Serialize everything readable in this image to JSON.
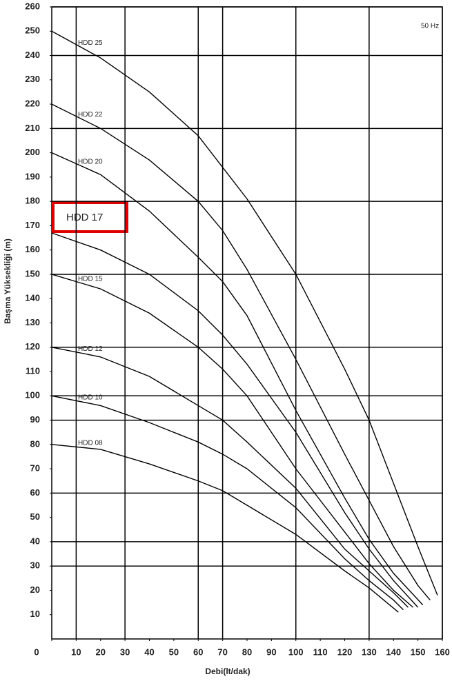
{
  "chart_data": {
    "type": "line",
    "x_label": "Debi(lt/dak)",
    "y_label": "Başma Yüksekliği (m)",
    "annotation": "50 Hz",
    "xlim": [
      0,
      160
    ],
    "ylim": [
      0,
      260
    ],
    "xticks": [
      0,
      10,
      20,
      30,
      40,
      50,
      60,
      70,
      80,
      90,
      100,
      110,
      120,
      130,
      140,
      150,
      160
    ],
    "yticks": [
      10,
      20,
      30,
      40,
      50,
      60,
      70,
      80,
      90,
      100,
      110,
      120,
      130,
      140,
      150,
      160,
      170,
      180,
      190,
      200,
      210,
      220,
      230,
      240,
      250,
      260
    ],
    "x_grid": [
      10,
      30,
      60,
      70,
      100,
      130,
      160
    ],
    "y_grid": [
      30,
      40,
      60,
      90,
      100,
      120,
      150,
      180,
      210,
      240,
      260
    ],
    "series": [
      {
        "name": "HDD 25",
        "color": "#000000",
        "x": [
          0,
          20,
          40,
          60,
          80,
          100,
          120,
          130,
          140,
          150,
          158
        ],
        "values": [
          250,
          239,
          225,
          207,
          181,
          150,
          111,
          90,
          64,
          38,
          18
        ]
      },
      {
        "name": "HDD 22",
        "color": "#000000",
        "x": [
          0,
          20,
          40,
          60,
          70,
          80,
          100,
          120,
          130,
          140,
          150,
          155
        ],
        "values": [
          220,
          210,
          197,
          180,
          168,
          152,
          115,
          76,
          57,
          38,
          22,
          16
        ]
      },
      {
        "name": "HDD 20",
        "color": "#000000",
        "x": [
          0,
          20,
          40,
          60,
          70,
          80,
          100,
          120,
          130,
          140,
          152
        ],
        "values": [
          200,
          191,
          176,
          157,
          147,
          133,
          94,
          58,
          41,
          27,
          14
        ]
      },
      {
        "name": "HDD 17",
        "color": "#000000",
        "x": [
          0,
          20,
          40,
          60,
          70,
          80,
          100,
          120,
          130,
          140,
          150
        ],
        "values": [
          167,
          160,
          150,
          135,
          125,
          113,
          85,
          52,
          37,
          24,
          13
        ]
      },
      {
        "name": "HDD 15",
        "color": "#000000",
        "x": [
          0,
          20,
          40,
          60,
          70,
          80,
          100,
          120,
          130,
          140,
          148
        ],
        "values": [
          150,
          144,
          134,
          120,
          111,
          100,
          70,
          44,
          31,
          20,
          13
        ]
      },
      {
        "name": "HDD 12",
        "color": "#000000",
        "x": [
          0,
          20,
          40,
          60,
          70,
          80,
          100,
          120,
          130,
          140,
          146
        ],
        "values": [
          120,
          116,
          108,
          96,
          90,
          81,
          62,
          37,
          28,
          19,
          13
        ]
      },
      {
        "name": "HDD 10",
        "color": "#000000",
        "x": [
          0,
          20,
          40,
          60,
          70,
          80,
          100,
          120,
          130,
          140,
          144
        ],
        "values": [
          100,
          96,
          89,
          81,
          76,
          70,
          54,
          33,
          24,
          16,
          12
        ]
      },
      {
        "name": "HDD 08",
        "color": "#000000",
        "x": [
          0,
          20,
          40,
          60,
          70,
          80,
          100,
          120,
          130,
          142
        ],
        "values": [
          80,
          78,
          72,
          65,
          61,
          55,
          43,
          28,
          21,
          11
        ]
      }
    ]
  }
}
